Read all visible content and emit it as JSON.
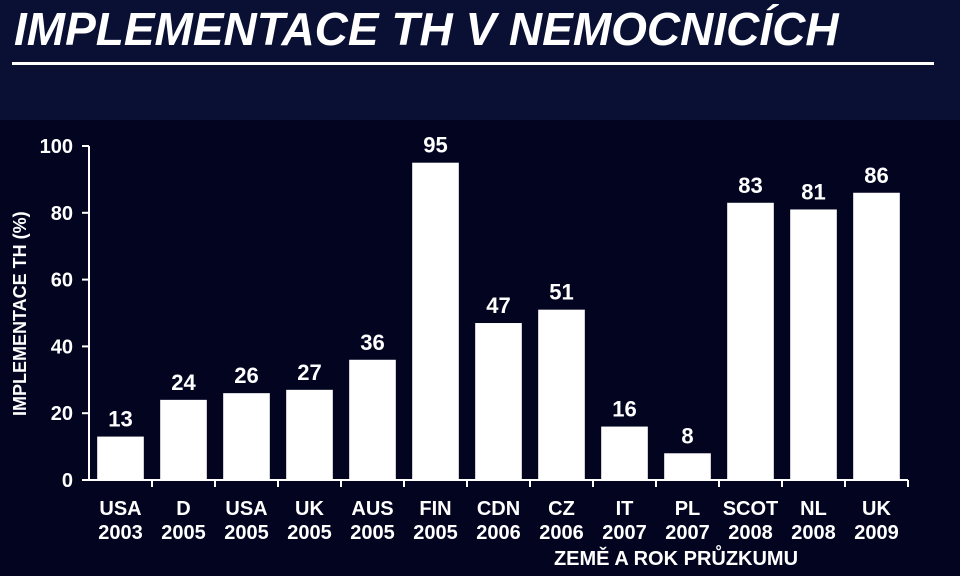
{
  "header": {
    "title": "IMPLEMENTACE TH V NEMOCNICÍCH"
  },
  "colors": {
    "background": "#030520",
    "title_band": "#091033",
    "bars": "#ffffff",
    "text": "#ffffff"
  },
  "chart_data": {
    "type": "bar",
    "title": "",
    "xlabel": "ZEMĚ A ROK PRŮZKUMU",
    "ylabel": "IMPLEMENTACE TH (%)",
    "ylim": [
      0,
      100
    ],
    "yticks": [
      0,
      20,
      40,
      60,
      80,
      100
    ],
    "grid": false,
    "legend": "none",
    "categories": [
      {
        "country": "USA",
        "year": "2003"
      },
      {
        "country": "D",
        "year": "2005"
      },
      {
        "country": "USA",
        "year": "2005"
      },
      {
        "country": "UK",
        "year": "2005"
      },
      {
        "country": "AUS",
        "year": "2005"
      },
      {
        "country": "FIN",
        "year": "2005"
      },
      {
        "country": "CDN",
        "year": "2006"
      },
      {
        "country": "CZ",
        "year": "2006"
      },
      {
        "country": "IT",
        "year": "2007"
      },
      {
        "country": "PL",
        "year": "2007"
      },
      {
        "country": "SCOT",
        "year": "2008"
      },
      {
        "country": "NL",
        "year": "2008"
      },
      {
        "country": "UK",
        "year": "2009"
      }
    ],
    "values": [
      13,
      24,
      26,
      27,
      36,
      95,
      47,
      51,
      16,
      8,
      83,
      81,
      86
    ]
  }
}
